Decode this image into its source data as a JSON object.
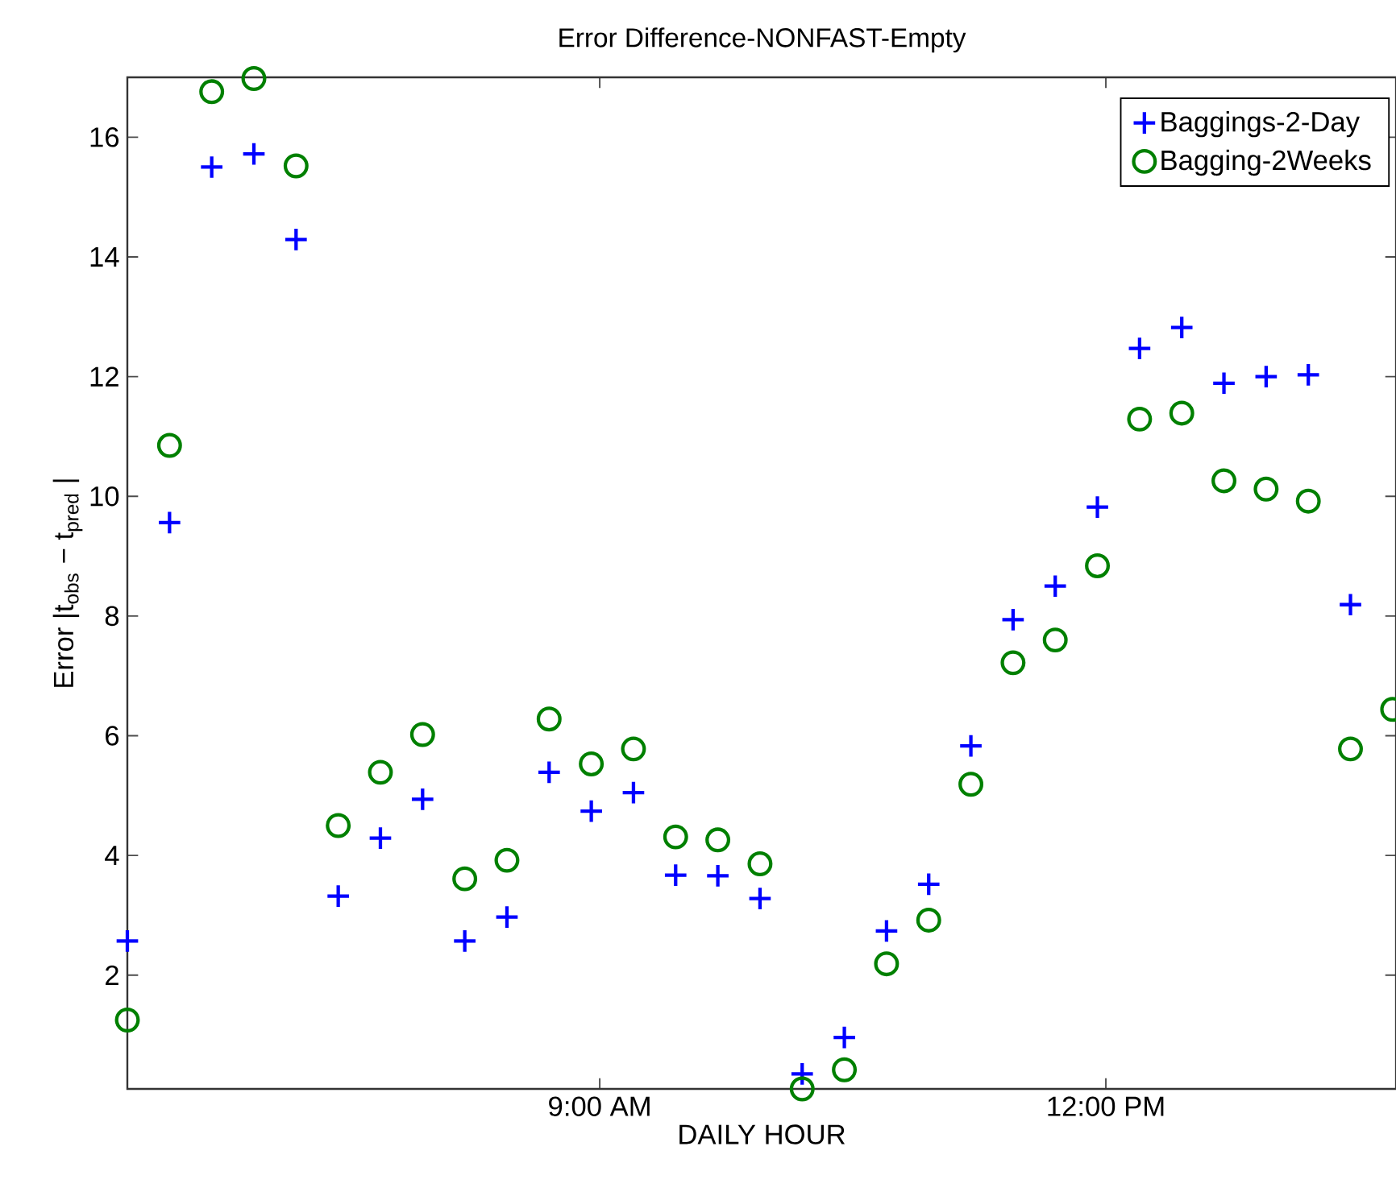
{
  "chart_data": {
    "type": "scatter",
    "title": "Error Difference-NONFAST-Empty",
    "xlabel": "DAILY HOUR",
    "ylabel": "Error |t$_{obs}$ − t$_{pred}$ |",
    "x": [
      6.2,
      6.45,
      6.7,
      6.95,
      7.2,
      7.45,
      7.7,
      7.95,
      8.2,
      8.45,
      8.7,
      8.95,
      9.2,
      9.45,
      9.7,
      9.95,
      10.2,
      10.45,
      10.7,
      10.95,
      11.2,
      11.45,
      11.7,
      11.95,
      12.2,
      12.45,
      12.7,
      12.95,
      13.2,
      13.45,
      13.7
    ],
    "series": [
      {
        "name": "Baggings-2-Day",
        "color": "#0000ff",
        "marker": "cross",
        "values": [
          2.57,
          9.56,
          15.5,
          15.72,
          14.29,
          3.32,
          4.29,
          4.94,
          2.57,
          2.97,
          5.39,
          4.74,
          5.05,
          3.67,
          3.66,
          3.28,
          0.35,
          0.96,
          2.74,
          3.52,
          5.83,
          7.94,
          8.5,
          9.82,
          12.47,
          12.82,
          11.89,
          12.0,
          12.03,
          8.19,
          null
        ]
      },
      {
        "name": "Bagging-2Weeks",
        "color": "#008000",
        "marker": "circle",
        "values": [
          1.25,
          10.85,
          16.76,
          16.98,
          15.52,
          4.5,
          5.39,
          6.02,
          3.61,
          3.92,
          6.28,
          5.53,
          5.78,
          4.31,
          4.26,
          3.86,
          0.1,
          0.42,
          2.19,
          2.92,
          5.19,
          7.22,
          7.6,
          8.84,
          11.29,
          11.39,
          10.26,
          10.12,
          9.92,
          5.78,
          6.44
        ]
      }
    ],
    "xlim": [
      6.2,
      13.72
    ],
    "ylim": [
      0.1,
      17
    ],
    "xticks": [
      {
        "value": 9,
        "label": "9:00 AM"
      },
      {
        "value": 12,
        "label": "12:00 PM"
      }
    ],
    "yticks": [
      2,
      4,
      6,
      8,
      10,
      12,
      14,
      16
    ],
    "legend": "top right"
  }
}
